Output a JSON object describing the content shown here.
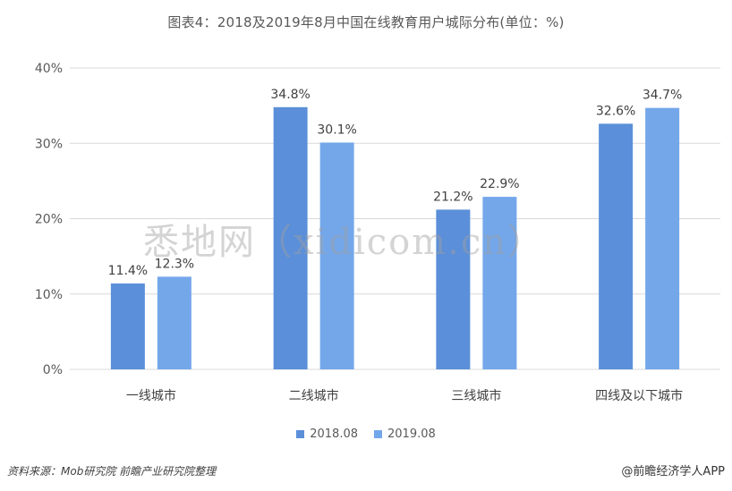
{
  "title": "图表4：2018及2019年8月中国在线教育用户城际分布(单位：%)",
  "watermark": "悉地网（xidicom.cn）",
  "footer": {
    "source": "资料来源：Mob研究院 前瞻产业研究院整理",
    "brand": "@前瞻经济学人APP"
  },
  "colors": {
    "s2018": "#5b8fd9",
    "s2019": "#74a7ea",
    "grid": "#d9d9d9"
  },
  "chart_data": {
    "type": "bar",
    "categories": [
      "一线城市",
      "二线城市",
      "三线城市",
      "四线及以下城市"
    ],
    "series": [
      {
        "name": "2018.08",
        "values": [
          11.4,
          34.8,
          21.2,
          32.6
        ],
        "labels": [
          "11.4%",
          "34.8%",
          "21.2%",
          "32.6%"
        ]
      },
      {
        "name": "2019.08",
        "values": [
          12.3,
          30.1,
          22.9,
          34.7
        ],
        "labels": [
          "12.3%",
          "30.1%",
          "22.9%",
          "34.7%"
        ]
      }
    ],
    "ylim": [
      0,
      40
    ],
    "yticks": [
      0,
      10,
      20,
      30,
      40
    ],
    "ytick_labels": [
      "0%",
      "10%",
      "20%",
      "30%",
      "40%"
    ],
    "grid": true,
    "legend": "bottom"
  }
}
